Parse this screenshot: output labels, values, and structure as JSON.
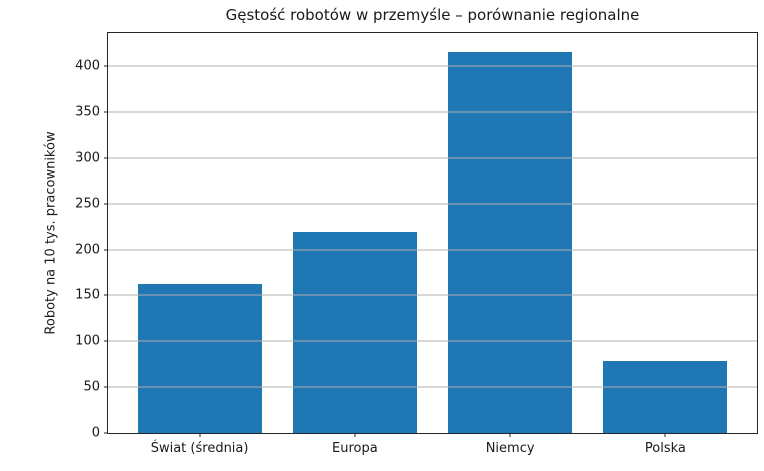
{
  "chart_data": {
    "type": "bar",
    "title": "Gęstość robotów w przemyśle – porównanie regionalne",
    "xlabel": "",
    "ylabel": "Roboty na 10 tys. pracowników",
    "categories": [
      "Świat (średnia)",
      "Europa",
      "Niemcy",
      "Polska"
    ],
    "values": [
      162,
      219,
      415,
      78
    ],
    "ylim": [
      0,
      436
    ],
    "yticks": [
      0,
      50,
      100,
      150,
      200,
      250,
      300,
      350,
      400
    ],
    "bar_color": "#1f77b4",
    "grid_color": "#b0b0b0",
    "grid": "y-axis only, drawn above bars",
    "legend_position": "none"
  }
}
